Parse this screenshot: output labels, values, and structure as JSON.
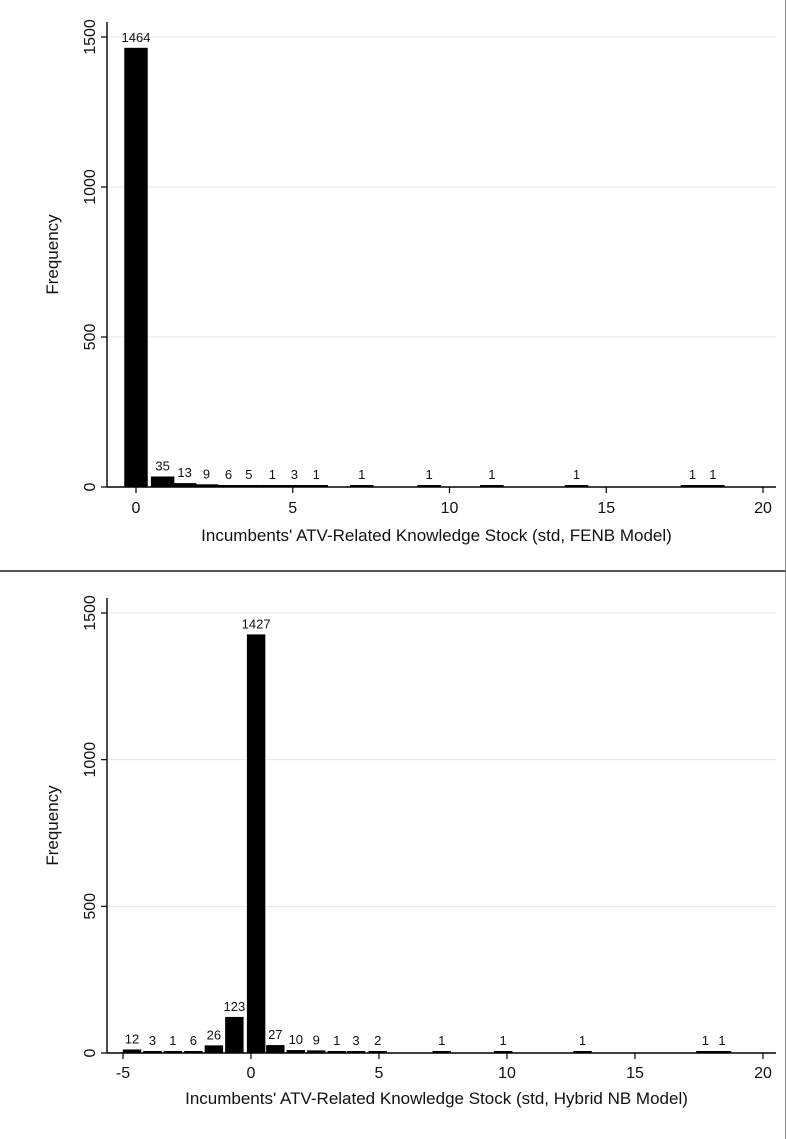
{
  "chart_data": [
    {
      "type": "bar",
      "xlabel": "Incumbents' ATV-Related Knowledge Stock (std, FENB Model)",
      "ylabel": "Frequency",
      "xlim": [
        -1,
        20
      ],
      "ylim": [
        0,
        1500
      ],
      "xticks": [
        0,
        5,
        10,
        15,
        20
      ],
      "yticks": [
        0,
        500,
        1000,
        1500
      ],
      "grid": true,
      "bar_width": 0.6,
      "x": [
        0,
        0.85,
        1.55,
        2.25,
        2.95,
        3.6,
        4.35,
        5.05,
        5.75,
        7.2,
        9.35,
        11.35,
        14.05,
        17.75,
        18.4
      ],
      "values": [
        1464,
        35,
        13,
        9,
        6,
        5,
        1,
        3,
        1,
        1,
        1,
        1,
        1,
        1,
        1
      ],
      "data_labels": [
        "1464",
        "35",
        "13",
        "9",
        "6",
        "5",
        "1",
        "3",
        "1",
        "1",
        "1",
        "1",
        "1",
        "1",
        "1"
      ]
    },
    {
      "type": "bar",
      "xlabel": "Incumbents' ATV-Related Knowledge Stock (std, Hybrid NB Model)",
      "ylabel": "Frequency",
      "xlim": [
        -6,
        20
      ],
      "ylim": [
        0,
        1500
      ],
      "xticks": [
        -5,
        0,
        5,
        10,
        15,
        20
      ],
      "yticks": [
        0,
        500,
        1000,
        1500
      ],
      "grid": true,
      "bar_width": 0.6,
      "x": [
        -4.65,
        -3.85,
        -3.05,
        -2.25,
        -1.45,
        -0.65,
        0.2,
        0.95,
        1.75,
        2.55,
        3.35,
        4.1,
        4.95,
        7.45,
        9.85,
        12.95,
        17.75,
        18.4
      ],
      "values": [
        12,
        3,
        1,
        6,
        26,
        123,
        1427,
        27,
        10,
        9,
        1,
        3,
        2,
        1,
        1,
        1,
        1,
        1
      ],
      "data_labels": [
        "12",
        "3",
        "1",
        "6",
        "26",
        "123",
        "1427",
        "27",
        "10",
        "9",
        "1",
        "3",
        "2",
        "1",
        "1",
        "1",
        "1",
        "1"
      ]
    }
  ]
}
